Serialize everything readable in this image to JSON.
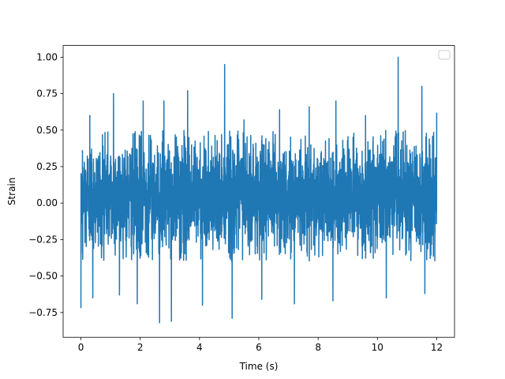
{
  "chart_data": {
    "type": "line",
    "title": "",
    "xlabel": "Time (s)",
    "ylabel": "Strain",
    "xlim": [
      -0.6,
      12.6
    ],
    "ylim": [
      -0.92,
      1.08
    ],
    "xticks": [
      0,
      2,
      4,
      6,
      8,
      10,
      12
    ],
    "xtick_labels": [
      "0",
      "2",
      "4",
      "6",
      "8",
      "10",
      "12"
    ],
    "yticks": [
      -0.75,
      -0.5,
      -0.25,
      0.0,
      0.25,
      0.5,
      0.75,
      1.0
    ],
    "ytick_labels": [
      "−0.75",
      "−0.50",
      "−0.25",
      "0.00",
      "0.25",
      "0.50",
      "0.75",
      "1.00"
    ],
    "grid": false,
    "legend": {
      "placement": "top-right",
      "entries": []
    },
    "series": [
      {
        "color": "#1f77b4",
        "x_range": [
          0,
          12
        ],
        "typical_envelope": [
          -0.4,
          0.5
        ],
        "peaks": [
          {
            "x": 0.0,
            "y": 0.55
          },
          {
            "x": 0.3,
            "y": 0.6
          },
          {
            "x": 1.1,
            "y": 0.75
          },
          {
            "x": 2.1,
            "y": 0.7
          },
          {
            "x": 2.8,
            "y": 0.7
          },
          {
            "x": 3.6,
            "y": 0.77
          },
          {
            "x": 4.85,
            "y": 0.95
          },
          {
            "x": 5.5,
            "y": 0.57
          },
          {
            "x": 6.7,
            "y": 0.64
          },
          {
            "x": 7.7,
            "y": 0.66
          },
          {
            "x": 8.6,
            "y": 0.7
          },
          {
            "x": 9.6,
            "y": 0.6
          },
          {
            "x": 10.7,
            "y": 1.0
          },
          {
            "x": 11.5,
            "y": 0.8
          },
          {
            "x": 12.0,
            "y": 0.62
          }
        ],
        "troughs": [
          {
            "x": 0.0,
            "y": -0.72
          },
          {
            "x": 0.4,
            "y": -0.65
          },
          {
            "x": 1.3,
            "y": -0.63
          },
          {
            "x": 1.9,
            "y": -0.69
          },
          {
            "x": 2.65,
            "y": -0.82
          },
          {
            "x": 3.05,
            "y": -0.81
          },
          {
            "x": 4.1,
            "y": -0.7
          },
          {
            "x": 5.1,
            "y": -0.79
          },
          {
            "x": 6.1,
            "y": -0.66
          },
          {
            "x": 7.2,
            "y": -0.69
          },
          {
            "x": 8.5,
            "y": -0.67
          },
          {
            "x": 10.3,
            "y": -0.65
          },
          {
            "x": 11.6,
            "y": -0.62
          }
        ]
      }
    ]
  }
}
